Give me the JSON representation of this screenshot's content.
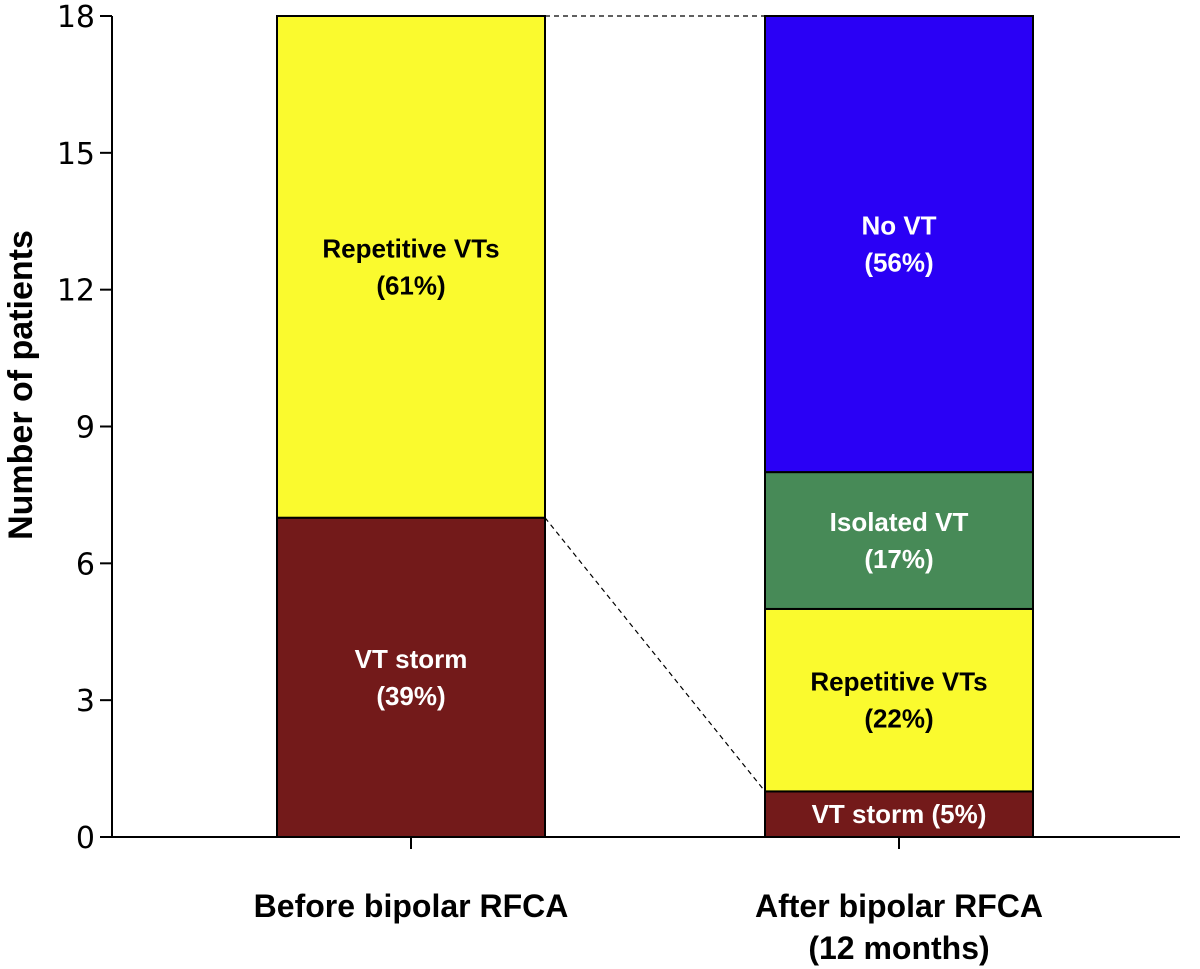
{
  "chart_data": {
    "type": "bar",
    "stacked": true,
    "ylabel": "Number of patients",
    "ylim": [
      0,
      18
    ],
    "yticks": [
      "0",
      "3",
      "6",
      "9",
      "12",
      "15",
      "18"
    ],
    "grid": false,
    "connector_lines": "dashed",
    "bars": [
      {
        "category": "Before bipolar RFCA",
        "category_lines": [
          "Before bipolar RFCA"
        ],
        "segments": [
          {
            "name": "VT storm",
            "value": 7,
            "color": "#731a1a",
            "text_color": "#ffffff",
            "label_lines": [
              "VT storm",
              "(39%)"
            ]
          },
          {
            "name": "Repetitive VTs",
            "value": 11,
            "color": "#fafa2e",
            "text_color": "#000000",
            "label_lines": [
              "Repetitive VTs",
              "(61%)"
            ]
          }
        ]
      },
      {
        "category": "After bipolar RFCA (12 months)",
        "category_lines": [
          "After bipolar RFCA",
          "(12 months)"
        ],
        "segments": [
          {
            "name": "VT storm",
            "value": 1,
            "color": "#731a1a",
            "text_color": "#ffffff",
            "label_lines": [
              "VT storm (5%)"
            ]
          },
          {
            "name": "Repetitive VTs",
            "value": 4,
            "color": "#fafa2e",
            "text_color": "#000000",
            "label_lines": [
              "Repetitive VTs",
              "(22%)"
            ]
          },
          {
            "name": "Isolated VT",
            "value": 3,
            "color": "#478a57",
            "text_color": "#ffffff",
            "label_lines": [
              "Isolated VT",
              "(17%)"
            ]
          },
          {
            "name": "No VT",
            "value": 10,
            "color": "#2a00f5",
            "text_color": "#ffffff",
            "label_lines": [
              "No VT",
              "(56%)"
            ]
          }
        ]
      }
    ]
  }
}
